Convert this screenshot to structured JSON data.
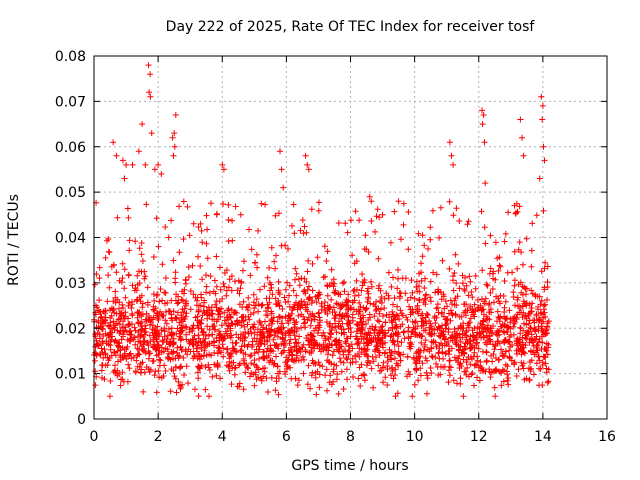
{
  "chart_data": {
    "type": "scatter",
    "title": "Day 222 of 2025, Rate Of TEC Index for receiver tosf",
    "xlabel": "GPS time / hours",
    "ylabel": "ROTI / TECUs",
    "xlim": [
      0,
      16
    ],
    "ylim": [
      0,
      0.08
    ],
    "x_ticks": [
      0,
      2,
      4,
      6,
      8,
      10,
      12,
      14,
      16
    ],
    "x_tick_labels": [
      "0",
      "2",
      "4",
      "6",
      "8",
      "10",
      "12",
      "14",
      "16"
    ],
    "y_ticks": [
      0,
      0.01,
      0.02,
      0.03,
      0.04,
      0.05,
      0.06,
      0.07,
      0.08
    ],
    "y_tick_labels": [
      "0",
      "0.01",
      "0.02",
      "0.03",
      "0.04",
      "0.05",
      "0.06",
      "0.07",
      "0.08"
    ],
    "grid": true,
    "marker": "+",
    "series": [
      {
        "name": "ROTI",
        "color": "#ff0000",
        "x_range": [
          0,
          14.2
        ],
        "typical_range": [
          0.008,
          0.035
        ],
        "center": 0.019,
        "points": [
          [
            1.7,
            0.078
          ],
          [
            1.75,
            0.076
          ],
          [
            1.72,
            0.072
          ],
          [
            1.76,
            0.071
          ],
          [
            1.5,
            0.065
          ],
          [
            1.8,
            0.063
          ],
          [
            2.55,
            0.067
          ],
          [
            2.5,
            0.063
          ],
          [
            2.45,
            0.062
          ],
          [
            2.52,
            0.06
          ],
          [
            2.48,
            0.058
          ],
          [
            0.6,
            0.061
          ],
          [
            0.7,
            0.058
          ],
          [
            0.9,
            0.057
          ],
          [
            1.0,
            0.056
          ],
          [
            0.95,
            0.053
          ],
          [
            1.2,
            0.056
          ],
          [
            1.4,
            0.059
          ],
          [
            1.6,
            0.056
          ],
          [
            1.9,
            0.055
          ],
          [
            2.0,
            0.056
          ],
          [
            2.1,
            0.054
          ],
          [
            4.0,
            0.056
          ],
          [
            4.05,
            0.055
          ],
          [
            5.8,
            0.059
          ],
          [
            5.85,
            0.055
          ],
          [
            5.9,
            0.051
          ],
          [
            6.6,
            0.058
          ],
          [
            6.65,
            0.056
          ],
          [
            6.7,
            0.055
          ],
          [
            8.6,
            0.049
          ],
          [
            8.65,
            0.048
          ],
          [
            9.5,
            0.048
          ],
          [
            9.0,
            0.045
          ],
          [
            11.1,
            0.061
          ],
          [
            11.15,
            0.058
          ],
          [
            11.2,
            0.056
          ],
          [
            12.1,
            0.068
          ],
          [
            12.15,
            0.067
          ],
          [
            12.12,
            0.065
          ],
          [
            12.18,
            0.061
          ],
          [
            12.2,
            0.052
          ],
          [
            13.3,
            0.066
          ],
          [
            13.35,
            0.062
          ],
          [
            13.4,
            0.058
          ],
          [
            13.95,
            0.071
          ],
          [
            14.0,
            0.069
          ],
          [
            13.98,
            0.066
          ],
          [
            14.02,
            0.06
          ],
          [
            14.05,
            0.057
          ],
          [
            13.9,
            0.053
          ]
        ]
      }
    ]
  }
}
